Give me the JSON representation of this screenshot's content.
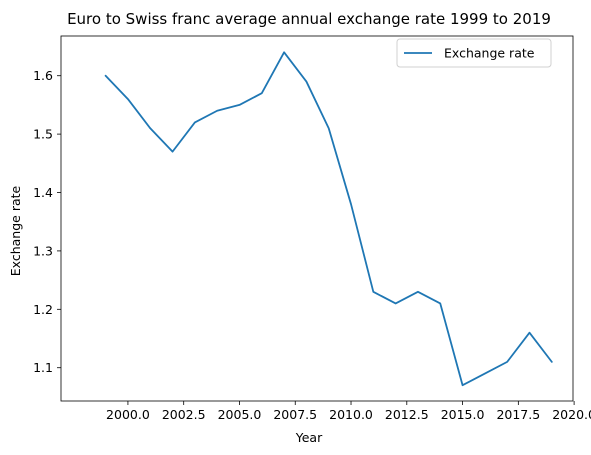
{
  "chart_data": {
    "type": "line",
    "title": "Euro to Swiss franc average annual exchange rate 1999 to 2019",
    "xlabel": "Year",
    "ylabel": "Exchange rate",
    "xlim": [
      1997.0,
      2019.95
    ],
    "ylim": [
      1.043,
      1.668
    ],
    "xticks": [
      2000.0,
      2002.5,
      2005.0,
      2007.5,
      2010.0,
      2012.5,
      2015.0,
      2017.5,
      2020.0
    ],
    "xtick_labels": [
      "2000.0",
      "2002.5",
      "2005.0",
      "2007.5",
      "2010.0",
      "2012.5",
      "2015.0",
      "2017.5",
      "2020.0"
    ],
    "yticks": [
      1.1,
      1.2,
      1.3,
      1.4,
      1.5,
      1.6
    ],
    "ytick_labels": [
      "1.1",
      "1.2",
      "1.3",
      "1.4",
      "1.5",
      "1.6"
    ],
    "grid": false,
    "legend_position": "top-right",
    "series": [
      {
        "name": "Exchange rate",
        "color": "#1f77b4",
        "x": [
          1999,
          2000,
          2001,
          2002,
          2003,
          2004,
          2005,
          2006,
          2007,
          2008,
          2009,
          2010,
          2011,
          2012,
          2013,
          2014,
          2015,
          2016,
          2017,
          2018,
          2019
        ],
        "y": [
          1.6,
          1.56,
          1.51,
          1.47,
          1.52,
          1.54,
          1.55,
          1.57,
          1.64,
          1.59,
          1.51,
          1.38,
          1.23,
          1.21,
          1.23,
          1.21,
          1.07,
          1.09,
          1.11,
          1.16,
          1.11
        ]
      }
    ]
  }
}
